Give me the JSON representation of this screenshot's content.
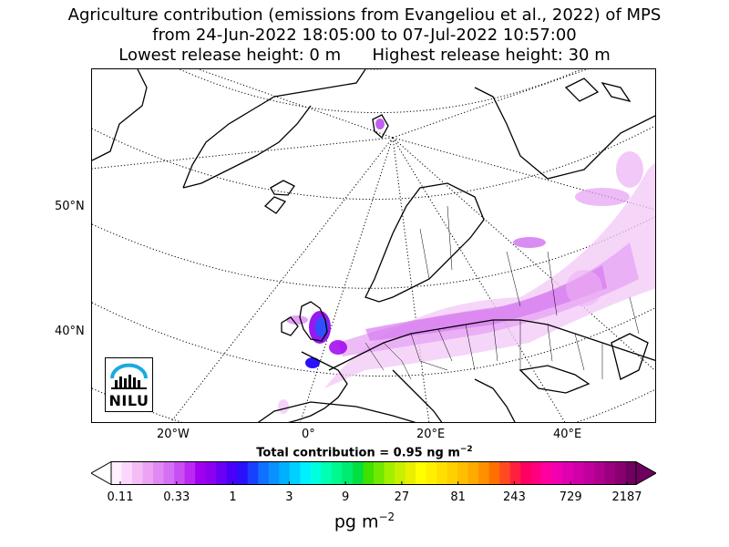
{
  "title": {
    "line1": "Agriculture contribution (emissions from Evangeliou et al., 2022) of MPS",
    "line2": "from 24-Jun-2022 18:05:00 to 07-Jul-2022 10:57:00",
    "line3": "Lowest release height: 0 m      Highest release height: 30 m"
  },
  "map": {
    "lat_labels": [
      "50°N",
      "40°N"
    ],
    "lon_labels": [
      "20°W",
      "0°",
      "20°E",
      "40°E"
    ],
    "logo_text": "NILU",
    "colors": {
      "coast": "#000000",
      "graticule": "#000000",
      "logo_blue": "#1ba9e1"
    }
  },
  "total_contribution": "Total contribution = 0.95 ng m",
  "total_exponent": "−2",
  "colorbar": {
    "tick_labels": [
      "0.11",
      "0.33",
      "1",
      "3",
      "9",
      "27",
      "81",
      "243",
      "729",
      "2187"
    ],
    "units": "pg m",
    "units_exponent": "−2",
    "colors": [
      "#fff0ff",
      "#fbd7fb",
      "#f4bdf6",
      "#eca3f3",
      "#e089f3",
      "#d56ff4",
      "#c94ef4",
      "#bb28f4",
      "#a000f0",
      "#8c00f0",
      "#6a00f4",
      "#4a00f8",
      "#2a10fb",
      "#1a40ff",
      "#1070ff",
      "#0a90ff",
      "#00b0ff",
      "#00d0ff",
      "#00f0ff",
      "#00ffe0",
      "#00ffb0",
      "#00f890",
      "#00ec70",
      "#00e040",
      "#40e000",
      "#70e800",
      "#a0f000",
      "#c8f000",
      "#e8f000",
      "#ffff00",
      "#fff000",
      "#ffe000",
      "#ffd000",
      "#ffbe00",
      "#ffaa00",
      "#ff9000",
      "#ff7000",
      "#ff4a20",
      "#ff2040",
      "#ff0060",
      "#ff0080",
      "#ff00a0",
      "#f000b0",
      "#e000b0",
      "#d000a8",
      "#c0009c",
      "#b00090",
      "#9a0080",
      "#880070",
      "#700060"
    ]
  }
}
